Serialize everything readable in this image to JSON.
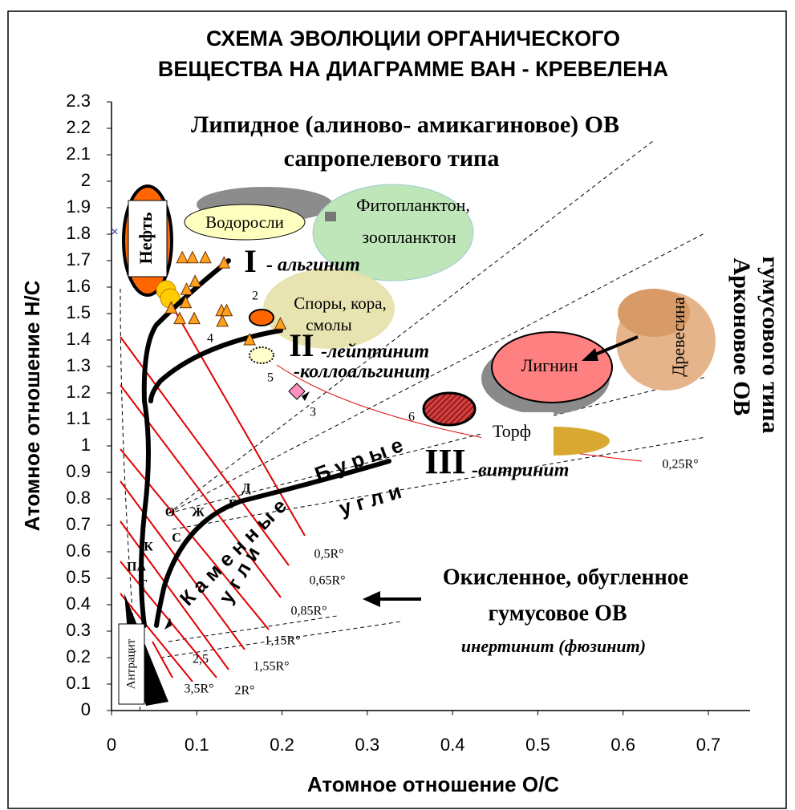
{
  "chart_data": {
    "type": "scatter",
    "title": [
      "СХЕМА ЭВОЛЮЦИИ ОРГАНИЧЕСКОГО",
      "ВЕЩЕСТВА НА ДИАГРАММЕ ВАН - КРЕВЕЛЕНА"
    ],
    "x_label": "Атомное отношение O/C",
    "y_label": "Атомное отношение H/C",
    "xlim": [
      0,
      0.75
    ],
    "ylim": [
      0,
      2.3
    ],
    "xticks": [
      0,
      0.1,
      0.2,
      0.3,
      0.4,
      0.5,
      0.6,
      0.7
    ],
    "yticks": [
      0,
      0.1,
      0.2,
      0.3,
      0.4,
      0.5,
      0.6,
      0.7,
      0.8,
      0.9,
      1,
      1.1,
      1.2,
      1.3,
      1.4,
      1.5,
      1.6,
      1.7,
      1.8,
      1.9,
      2,
      2.1,
      2.2,
      2.3
    ],
    "series": [
      {
        "color": "#ffa020",
        "x": [
          0.083,
          0.095,
          0.11,
          0.132,
          0.098,
          0.088,
          0.07,
          0.087,
          0.08,
          0.097,
          0.129,
          0.135,
          0.13,
          0.162,
          0.198
        ],
        "y": [
          1.71,
          1.71,
          1.71,
          1.69,
          1.62,
          1.59,
          1.52,
          1.54,
          1.48,
          1.48,
          1.51,
          1.51,
          1.47,
          1.4,
          1.46
        ]
      }
    ],
    "annotations": [
      "Липидное (алиново- амикагиновое) ОВ",
      "сапропелевого типа",
      "Фитопланктон,",
      "зоопланктон",
      "Водоросли",
      "Нефть",
      "I",
      "- альгинит",
      "Споры, кора,",
      "смолы",
      "2",
      "4",
      "II",
      "-лейптинит",
      "-коллоальгинит",
      "5",
      "3",
      "Древесина",
      "Лигнин",
      "6",
      "Торф",
      "Арконовое ОВ",
      "гумусового типа",
      "Б у р ы е",
      "у г л и",
      "III",
      "-витринит",
      "0,25R°",
      "Д",
      "Г",
      "Ж",
      "О",
      "С",
      "К",
      "ПА",
      "Т",
      "К а м е н н ы е",
      "у г л и",
      "0,5R°",
      "0,65R°",
      "0,85R°",
      "1,15R°",
      "1,55R°",
      "2R°",
      "2,5",
      "3,5R°",
      "Окисленное, обугленное",
      "гумусовое ОВ",
      "инертинит (фюзинит)",
      "Антрацит"
    ]
  }
}
